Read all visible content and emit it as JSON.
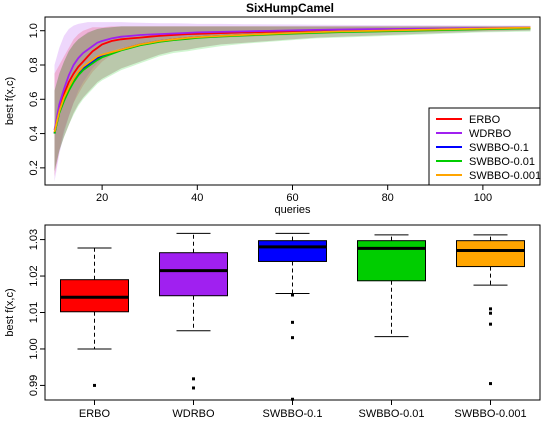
{
  "chart_data": [
    {
      "type": "line",
      "title": "SixHumpCamel",
      "xlabel": "queries",
      "ylabel": "best f(x,c)",
      "xlim": [
        8,
        112
      ],
      "ylim": [
        0.1,
        1.08
      ],
      "xticks": [
        20,
        40,
        60,
        80,
        100
      ],
      "yticks": [
        0.2,
        0.4,
        0.6,
        0.8,
        1.0
      ],
      "yticklabels": [
        "0.2",
        "0.4",
        "0.6",
        "0.8",
        "1.0"
      ],
      "legend_position": "bottom-right",
      "x": [
        10,
        11,
        12,
        13,
        14,
        15,
        16,
        17,
        18,
        19,
        20,
        22,
        24,
        26,
        28,
        30,
        32,
        35,
        38,
        40,
        45,
        50,
        55,
        60,
        65,
        70,
        80,
        90,
        100,
        110
      ],
      "series": [
        {
          "name": "ERBO",
          "color": "#ff0000",
          "values": [
            0.4,
            0.55,
            0.63,
            0.7,
            0.75,
            0.79,
            0.82,
            0.85,
            0.88,
            0.9,
            0.92,
            0.94,
            0.95,
            0.955,
            0.96,
            0.965,
            0.97,
            0.975,
            0.98,
            0.982,
            0.986,
            0.99,
            0.993,
            0.996,
            0.998,
            1.0,
            1.005,
            1.01,
            1.013,
            1.015
          ],
          "band_low": [
            0.15,
            0.3,
            0.42,
            0.5,
            0.58,
            0.63,
            0.68,
            0.72,
            0.76,
            0.79,
            0.82,
            0.86,
            0.89,
            0.9,
            0.91,
            0.92,
            0.93,
            0.94,
            0.95,
            0.955,
            0.96,
            0.965,
            0.97,
            0.975,
            0.98,
            0.985,
            0.99,
            0.995,
            1.0,
            1.005
          ],
          "band_high": [
            0.75,
            0.8,
            0.85,
            0.9,
            0.95,
            0.98,
            1.0,
            1.01,
            1.02,
            1.02,
            1.02,
            1.025,
            1.025,
            1.025,
            1.025,
            1.025,
            1.025,
            1.025,
            1.025,
            1.025,
            1.025,
            1.025,
            1.025,
            1.025,
            1.025,
            1.025,
            1.025,
            1.025,
            1.025,
            1.025
          ]
        },
        {
          "name": "WDRBO",
          "color": "#a020f0",
          "values": [
            0.42,
            0.57,
            0.66,
            0.74,
            0.8,
            0.84,
            0.87,
            0.89,
            0.91,
            0.93,
            0.94,
            0.955,
            0.965,
            0.97,
            0.975,
            0.978,
            0.98,
            0.984,
            0.987,
            0.99,
            0.993,
            0.996,
            0.999,
            1.002,
            1.005,
            1.007,
            1.01,
            1.013,
            1.016,
            1.018
          ],
          "band_low": [
            0.12,
            0.28,
            0.4,
            0.5,
            0.58,
            0.65,
            0.7,
            0.74,
            0.78,
            0.81,
            0.84,
            0.88,
            0.9,
            0.91,
            0.92,
            0.93,
            0.935,
            0.94,
            0.95,
            0.955,
            0.96,
            0.97,
            0.975,
            0.98,
            0.985,
            0.99,
            0.995,
            1.0,
            1.005,
            1.008
          ],
          "band_high": [
            0.8,
            0.9,
            0.97,
            1.01,
            1.03,
            1.04,
            1.045,
            1.05,
            1.05,
            1.05,
            1.05,
            1.05,
            1.05,
            1.048,
            1.046,
            1.045,
            1.044,
            1.043,
            1.042,
            1.04,
            1.04,
            1.038,
            1.037,
            1.036,
            1.035,
            1.034,
            1.033,
            1.032,
            1.031,
            1.03
          ]
        },
        {
          "name": "SWBBO-0.1",
          "color": "#0000ff",
          "values": [
            0.4,
            0.53,
            0.6,
            0.66,
            0.71,
            0.75,
            0.78,
            0.8,
            0.82,
            0.84,
            0.85,
            0.87,
            0.89,
            0.905,
            0.92,
            0.93,
            0.94,
            0.95,
            0.958,
            0.962,
            0.97,
            0.976,
            0.982,
            0.987,
            0.992,
            0.996,
            1.0,
            1.006,
            1.012,
            1.016
          ],
          "band_low": [
            0.18,
            0.3,
            0.38,
            0.45,
            0.52,
            0.57,
            0.61,
            0.64,
            0.67,
            0.7,
            0.72,
            0.75,
            0.78,
            0.8,
            0.82,
            0.84,
            0.86,
            0.88,
            0.89,
            0.9,
            0.92,
            0.93,
            0.94,
            0.95,
            0.96,
            0.965,
            0.975,
            0.985,
            0.995,
            1.0
          ],
          "band_high": [
            0.65,
            0.75,
            0.82,
            0.88,
            0.92,
            0.95,
            0.97,
            0.99,
            1.0,
            1.01,
            1.015,
            1.02,
            1.025,
            1.025,
            1.025,
            1.025,
            1.025,
            1.025,
            1.025,
            1.025,
            1.025,
            1.025,
            1.025,
            1.025,
            1.025,
            1.025,
            1.025,
            1.025,
            1.025,
            1.025
          ]
        },
        {
          "name": "SWBBO-0.01",
          "color": "#00cd00",
          "values": [
            0.4,
            0.52,
            0.59,
            0.65,
            0.7,
            0.74,
            0.77,
            0.79,
            0.81,
            0.83,
            0.845,
            0.865,
            0.885,
            0.9,
            0.915,
            0.925,
            0.935,
            0.945,
            0.953,
            0.958,
            0.966,
            0.972,
            0.978,
            0.983,
            0.988,
            0.992,
            0.997,
            1.003,
            1.009,
            1.014
          ],
          "band_low": [
            0.18,
            0.3,
            0.38,
            0.45,
            0.51,
            0.56,
            0.6,
            0.63,
            0.66,
            0.69,
            0.71,
            0.74,
            0.77,
            0.79,
            0.81,
            0.83,
            0.85,
            0.87,
            0.88,
            0.89,
            0.91,
            0.925,
            0.935,
            0.945,
            0.955,
            0.96,
            0.97,
            0.98,
            0.99,
            0.995
          ],
          "band_high": [
            0.65,
            0.75,
            0.82,
            0.88,
            0.92,
            0.95,
            0.97,
            0.985,
            1.0,
            1.01,
            1.015,
            1.02,
            1.025,
            1.025,
            1.025,
            1.025,
            1.025,
            1.025,
            1.025,
            1.025,
            1.025,
            1.025,
            1.025,
            1.025,
            1.025,
            1.025,
            1.025,
            1.025,
            1.025,
            1.025
          ]
        },
        {
          "name": "SWBBO-0.001",
          "color": "#ffa500",
          "values": [
            0.41,
            0.53,
            0.61,
            0.67,
            0.72,
            0.76,
            0.79,
            0.81,
            0.83,
            0.85,
            0.86,
            0.875,
            0.89,
            0.905,
            0.92,
            0.93,
            0.94,
            0.95,
            0.958,
            0.963,
            0.97,
            0.976,
            0.982,
            0.987,
            0.992,
            0.996,
            1.001,
            1.007,
            1.013,
            1.018
          ],
          "band_low": [
            0.18,
            0.3,
            0.38,
            0.45,
            0.52,
            0.57,
            0.61,
            0.64,
            0.67,
            0.7,
            0.72,
            0.75,
            0.78,
            0.8,
            0.82,
            0.84,
            0.86,
            0.88,
            0.89,
            0.9,
            0.92,
            0.93,
            0.94,
            0.95,
            0.96,
            0.965,
            0.975,
            0.985,
            0.995,
            1.0
          ],
          "band_high": [
            0.65,
            0.75,
            0.82,
            0.88,
            0.92,
            0.95,
            0.97,
            0.99,
            1.0,
            1.01,
            1.015,
            1.02,
            1.025,
            1.025,
            1.025,
            1.025,
            1.025,
            1.025,
            1.025,
            1.025,
            1.025,
            1.025,
            1.025,
            1.025,
            1.025,
            1.025,
            1.025,
            1.025,
            1.025,
            1.025
          ]
        }
      ]
    },
    {
      "type": "box",
      "title": "",
      "xlabel": "",
      "ylabel": "best f(x,c)",
      "ylim": [
        0.986,
        1.034
      ],
      "yticks": [
        0.99,
        1.0,
        1.01,
        1.02,
        1.03
      ],
      "yticklabels": [
        "0.99",
        "1.00",
        "1.01",
        "1.02",
        "1.03"
      ],
      "categories": [
        "ERBO",
        "WDRBO",
        "SWBBO-0.1",
        "SWBBO-0.01",
        "SWBBO-0.001"
      ],
      "boxes": [
        {
          "name": "ERBO",
          "color": "#ff0000",
          "whisker_low": 1.0,
          "q1": 1.0102,
          "median": 1.0142,
          "q3": 1.019,
          "whisker_high": 1.0277,
          "outliers": [
            0.99
          ]
        },
        {
          "name": "WDRBO",
          "color": "#a020f0",
          "whisker_low": 1.005,
          "q1": 1.0146,
          "median": 1.0215,
          "q3": 1.0264,
          "whisker_high": 1.0317,
          "outliers": [
            0.9918,
            0.9893
          ]
        },
        {
          "name": "SWBBO-0.1",
          "color": "#0000ff",
          "whisker_low": 1.0152,
          "q1": 1.024,
          "median": 1.028,
          "q3": 1.0297,
          "whisker_high": 1.0317,
          "outliers": [
            1.0148,
            1.0073,
            1.0031,
            0.9862
          ]
        },
        {
          "name": "SWBBO-0.01",
          "color": "#00cd00",
          "whisker_low": 1.0034,
          "q1": 1.0187,
          "median": 1.0276,
          "q3": 1.0297,
          "whisker_high": 1.0313,
          "outliers": []
        },
        {
          "name": "SWBBO-0.001",
          "color": "#ffa500",
          "whisker_low": 1.0175,
          "q1": 1.0226,
          "median": 1.027,
          "q3": 1.0297,
          "whisker_high": 1.0313,
          "outliers": [
            1.011,
            1.0098,
            1.0068,
            0.9905
          ]
        }
      ]
    }
  ]
}
